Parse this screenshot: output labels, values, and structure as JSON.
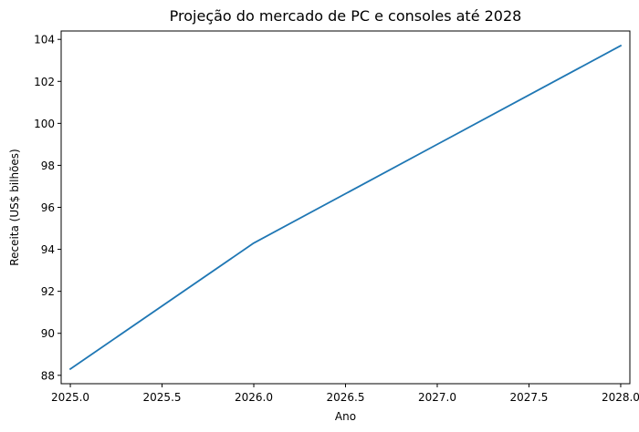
{
  "chart_data": {
    "type": "line",
    "title": "Projeção do mercado de PC e consoles até 2028",
    "xlabel": "Ano",
    "ylabel": "Receita (US$ bilhões)",
    "xlim": [
      2024.95,
      2028.05
    ],
    "ylim": [
      87.6,
      104.4
    ],
    "x_ticks": [
      "2025.0",
      "2025.5",
      "2026.0",
      "2026.5",
      "2027.0",
      "2027.5",
      "2028.0"
    ],
    "y_ticks": [
      "88",
      "90",
      "92",
      "94",
      "96",
      "98",
      "100",
      "102",
      "104"
    ],
    "grid": false,
    "legend": "none",
    "series": [
      {
        "color": "#1f77b4",
        "x": [
          2025,
          2026,
          2027,
          2028
        ],
        "y": [
          88.3,
          94.3,
          99.0,
          103.7
        ]
      }
    ]
  }
}
